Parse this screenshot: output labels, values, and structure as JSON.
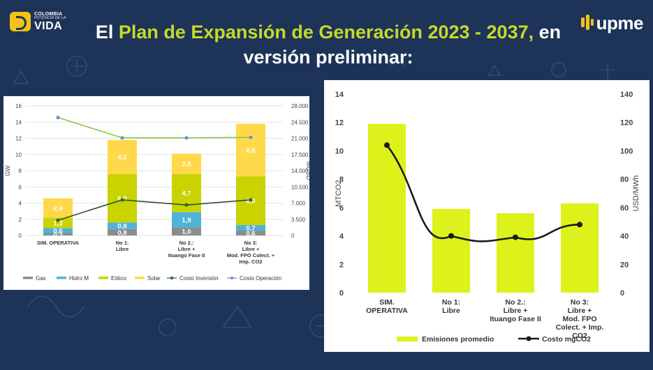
{
  "header": {
    "logo_left": {
      "line1": "COLOMBIA",
      "line2": "POTENCIA DE LA",
      "line3": "VIDA"
    },
    "logo_right": {
      "word": "upme"
    },
    "title_prefix": "El ",
    "title_highlight": "Plan de Expansión de Generación 2023 - 2037,",
    "title_suffix": " en versión preliminar:"
  },
  "colors": {
    "background": "#1e3358",
    "gas": "#8c8c8c",
    "hidro": "#4fb3d9",
    "eolico": "#c9d300",
    "solar": "#ffd94a",
    "costo_inversion": "#2f6b2f",
    "costo_operacion": "#6f8fd1",
    "costo_operacion_line": "#8bc34a",
    "emisiones": "#ddf21a",
    "costo_co2": "#1a1a1a"
  },
  "chart_data": [
    {
      "type": "bar",
      "stacked": true,
      "categories": [
        "SIM. OPERATIVA",
        "No 1:\nLibre",
        "No 2.:\nLibre +\nItuango Fase II",
        "No 3:\nLibre +\nMod. FPO Colect. +\nImp. CO2"
      ],
      "ylabel": "GW",
      "y2label": "MUSD",
      "ylim": [
        0,
        16
      ],
      "yticks": [
        0,
        2,
        4,
        6,
        8,
        10,
        12,
        14,
        16
      ],
      "y2lim": [
        0,
        28000
      ],
      "y2ticks": [
        "0",
        "3.500",
        "7.000",
        "10.500",
        "14.000",
        "17.500",
        "21.000",
        "24.500",
        "28.000"
      ],
      "grid": true,
      "legend_position": "bottom",
      "series": [
        {
          "name": "Gas",
          "values": [
            0.3,
            0.8,
            1.0,
            0.6
          ],
          "labels": [
            "0,3",
            "0,8",
            "1,0",
            "0,6"
          ]
        },
        {
          "name": "Hidro M",
          "values": [
            0.6,
            0.8,
            1.9,
            0.7
          ],
          "labels": [
            "0,6",
            "0,8",
            "1,9",
            "0,7"
          ]
        },
        {
          "name": "Eólico",
          "values": [
            1.3,
            6.0,
            4.7,
            6.0
          ],
          "labels": [
            "1,3",
            "6,0",
            "4,7",
            "6,0"
          ]
        },
        {
          "name": "Solar",
          "values": [
            2.4,
            4.2,
            2.5,
            6.5
          ],
          "labels": [
            "2,4",
            "4,2",
            "2,5",
            "6,5"
          ]
        }
      ],
      "lines": [
        {
          "name": "Costo Inversión",
          "axis": "y2",
          "values": [
            3300,
            7700,
            6600,
            7700
          ]
        },
        {
          "name": "Costo Operación",
          "axis": "y2",
          "values": [
            25500,
            21100,
            21100,
            21200
          ]
        }
      ]
    },
    {
      "type": "bar",
      "categories": [
        "SIM.\nOPERATIVA",
        "No 1:\nLibre",
        "No 2.:\nLibre +\nItuango Fase II",
        "No 3:\nLibre +\nMod. FPO\nColect. + Imp.\nCO2"
      ],
      "ylabel": "MTCO2",
      "y2label": "USD/MWh",
      "ylim": [
        0,
        14
      ],
      "yticks": [
        0,
        2,
        4,
        6,
        8,
        10,
        12,
        14
      ],
      "y2lim": [
        0,
        140
      ],
      "y2ticks": [
        0,
        20,
        40,
        60,
        80,
        100,
        120,
        140
      ],
      "grid": false,
      "legend_position": "bottom",
      "series": [
        {
          "name": "Emisiones promedio",
          "values": [
            11.9,
            5.9,
            5.6,
            6.3
          ]
        }
      ],
      "lines": [
        {
          "name": "Costo mgCO2",
          "axis": "y2",
          "smooth": true,
          "values": [
            104,
            40,
            39,
            48
          ]
        }
      ]
    }
  ]
}
